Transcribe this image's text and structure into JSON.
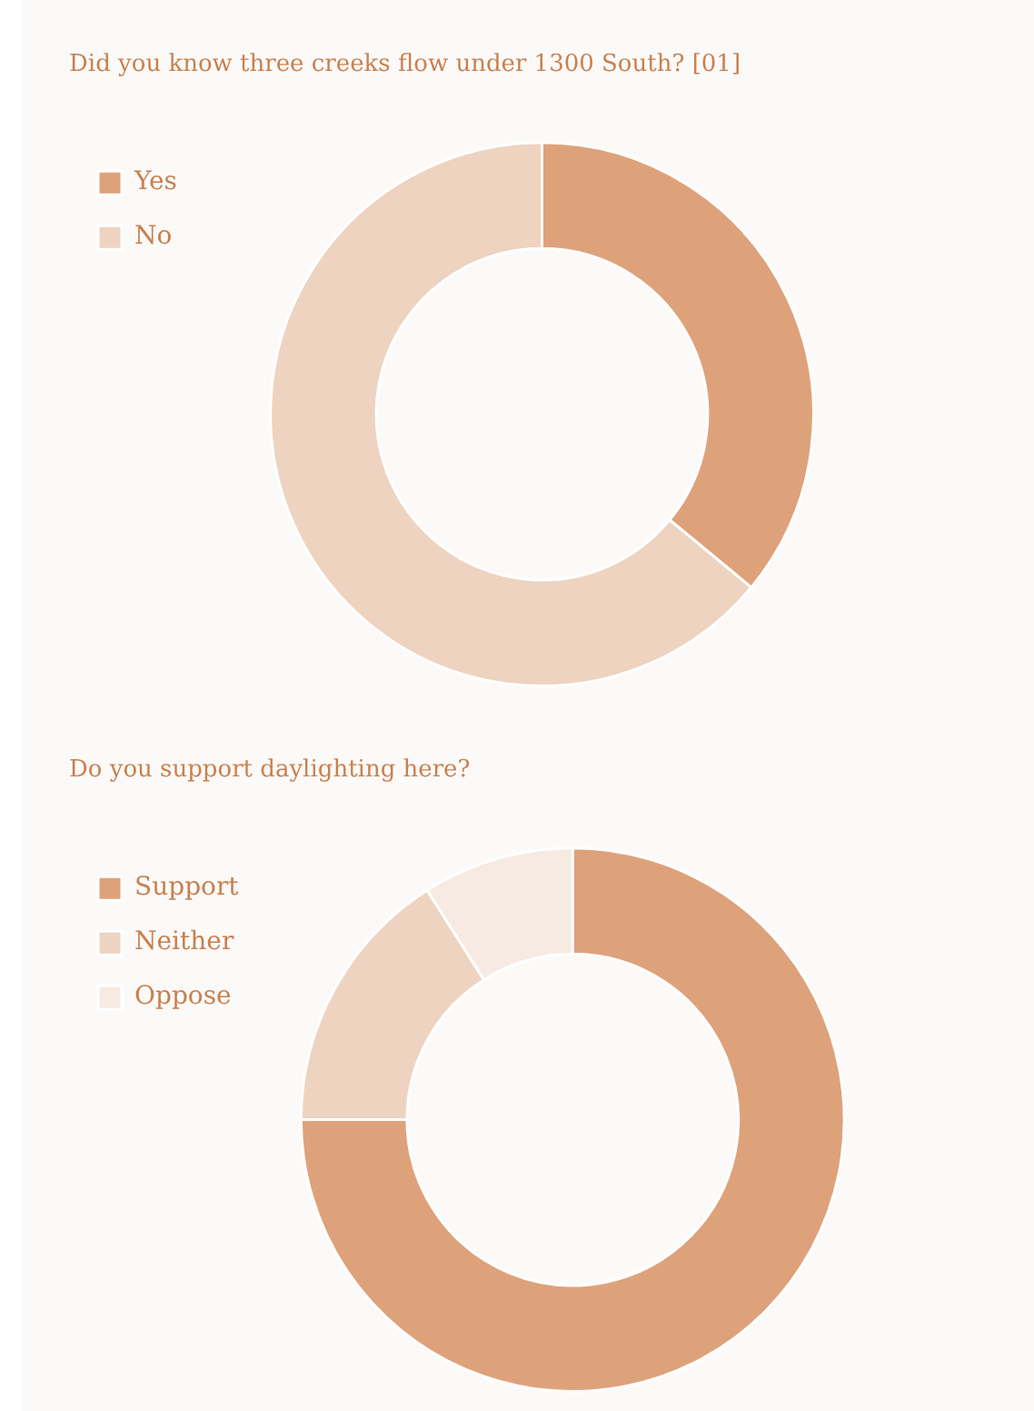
{
  "chart_data": [
    {
      "type": "donut",
      "title": "Did you know three creeks flow under 1300 South? [01]",
      "categories": [
        "Yes",
        "No"
      ],
      "values": [
        36,
        64
      ],
      "colors": [
        "#dea27b",
        "#eed3c0"
      ],
      "legend": "top left"
    },
    {
      "type": "donut",
      "title": "Do you support daylighting here?",
      "categories": [
        "Support",
        "Neither",
        "Oppose"
      ],
      "values": [
        75,
        16,
        9
      ],
      "colors": [
        "#dea27b",
        "#eed3c0",
        "#f7eae2"
      ],
      "legend": "top left"
    }
  ]
}
